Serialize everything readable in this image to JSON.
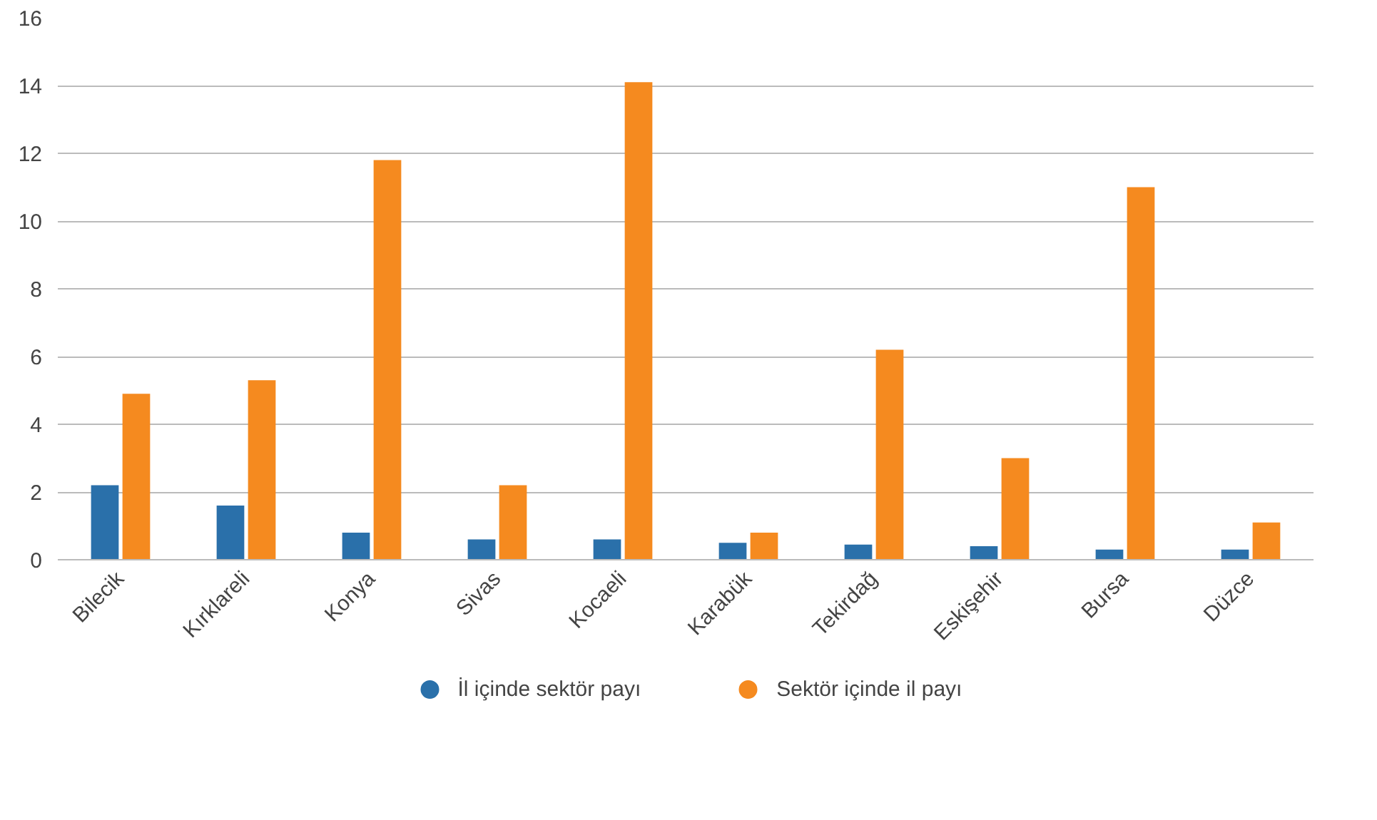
{
  "chart_data": {
    "type": "bar",
    "categories": [
      "Bilecik",
      "Kırklareli",
      "Konya",
      "Sivas",
      "Kocaeli",
      "Karabük",
      "Tekirdağ",
      "Eskişehir",
      "Bursa",
      "Düzce"
    ],
    "series": [
      {
        "name": "İl içinde sektör payı",
        "color": "#2a70aa",
        "values": [
          2.2,
          1.6,
          0.8,
          0.6,
          0.6,
          0.5,
          0.45,
          0.4,
          0.3,
          0.3
        ]
      },
      {
        "name": "Sektör içinde il payı",
        "color": "#f58a1f",
        "values": [
          4.9,
          5.3,
          11.8,
          2.2,
          14.1,
          0.8,
          6.2,
          3.0,
          11.0,
          1.1
        ]
      }
    ],
    "ylim": [
      0,
      16
    ],
    "yticks": [
      0,
      2,
      4,
      6,
      8,
      10,
      12,
      14,
      16
    ],
    "grid": "y",
    "legend": "bottom"
  }
}
